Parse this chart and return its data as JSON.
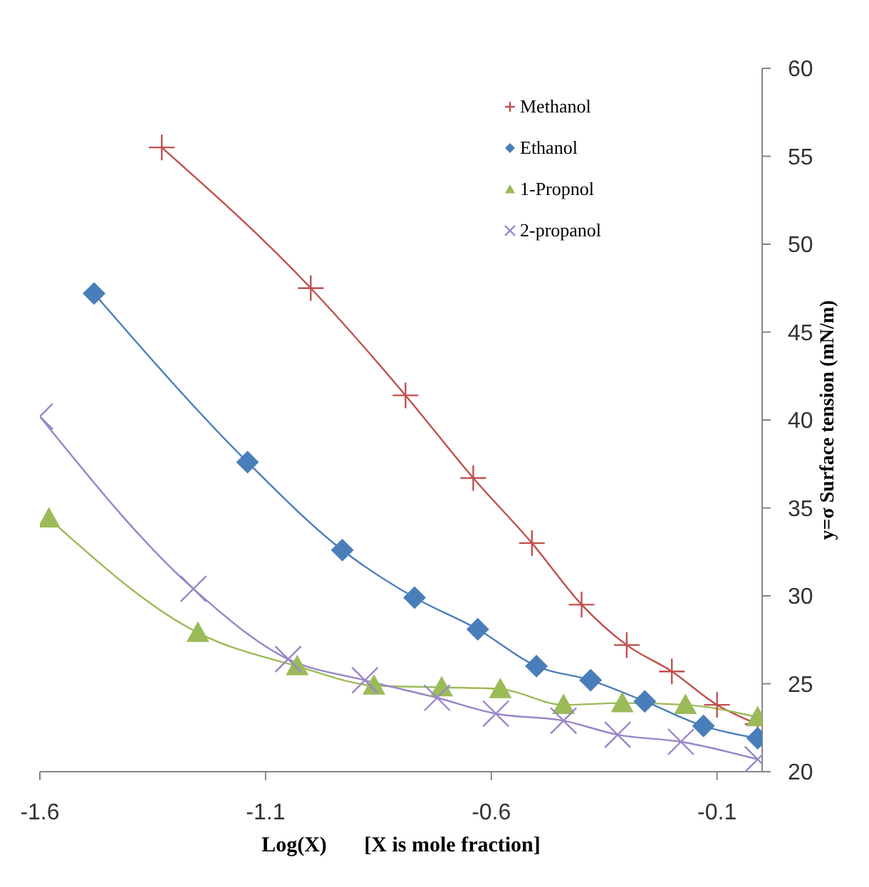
{
  "chart_data": {
    "type": "line",
    "xlabel": "Log(X)       [X is mole fraction]",
    "ylabel": "y=σ  Surface tension (mN/m)",
    "xlim": [
      -1.6,
      0
    ],
    "xticks": [
      -1.6,
      -1.1,
      -0.6,
      -0.1
    ],
    "ylim": [
      20,
      60
    ],
    "yticks": [
      20,
      25,
      30,
      35,
      40,
      45,
      50,
      55,
      60
    ],
    "grid": false,
    "legend": "top right",
    "series": [
      {
        "name": "Methanol",
        "color": "#c0504d",
        "marker": "cross",
        "x": [
          -1.33,
          -1.0,
          -0.79,
          -0.64,
          -0.51,
          -0.4,
          -0.3,
          -0.2,
          -0.1,
          -0.01
        ],
        "values": [
          55.5,
          47.5,
          41.4,
          36.7,
          33.0,
          29.5,
          27.2,
          25.7,
          23.8,
          22.7
        ]
      },
      {
        "name": "Ethanol",
        "color": "#4a7ebb",
        "marker": "diamond",
        "x": [
          -1.48,
          -1.14,
          -0.93,
          -0.77,
          -0.63,
          -0.5,
          -0.38,
          -0.26,
          -0.13,
          -0.01
        ],
        "values": [
          47.2,
          37.6,
          32.6,
          29.9,
          28.1,
          26.0,
          25.2,
          24.0,
          22.6,
          21.9
        ]
      },
      {
        "name": "1-Propnol",
        "color": "#9bbb59",
        "marker": "triangle",
        "x": [
          -1.58,
          -1.25,
          -1.03,
          -0.86,
          -0.71,
          -0.58,
          -0.44,
          -0.31,
          -0.17,
          -0.01
        ],
        "values": [
          34.4,
          27.9,
          26.0,
          24.9,
          24.8,
          24.7,
          23.8,
          23.9,
          23.8,
          23.1
        ]
      },
      {
        "name": "2-propanol",
        "color": "#9886c9",
        "marker": "cross",
        "x": [
          -1.6,
          -1.26,
          -1.05,
          -0.88,
          -0.72,
          -0.59,
          -0.44,
          -0.32,
          -0.18,
          -0.01
        ],
        "values": [
          40.2,
          30.4,
          26.4,
          25.2,
          24.2,
          23.3,
          22.9,
          22.1,
          21.7,
          20.7
        ]
      }
    ]
  }
}
